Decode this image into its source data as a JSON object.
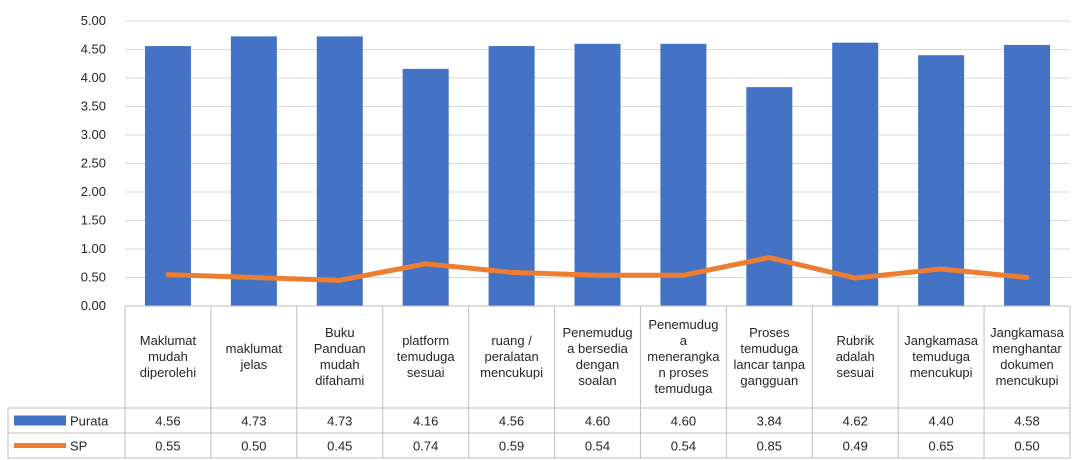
{
  "chart_data": {
    "type": "bar",
    "categories": [
      [
        "Maklumat",
        "mudah",
        "diperolehi"
      ],
      [
        "maklumat",
        "jelas"
      ],
      [
        "Buku",
        "Panduan",
        "mudah",
        "difahami"
      ],
      [
        "platform",
        "temuduga",
        "sesuai"
      ],
      [
        "ruang /",
        "peralatan",
        "mencukupi"
      ],
      [
        "Penemudug",
        "a bersedia",
        "dengan",
        "soalan"
      ],
      [
        "Penemudug",
        "a",
        "menerangka",
        "n proses",
        "temuduga"
      ],
      [
        "Proses",
        "temuduga",
        "lancar tanpa",
        "gangguan"
      ],
      [
        "Rubrik",
        "adalah",
        "sesuai"
      ],
      [
        "Jangkamasa",
        "temuduga",
        "mencukupi"
      ],
      [
        "Jangkamasa",
        "menghantar",
        "dokumen",
        "mencukupi"
      ]
    ],
    "series": [
      {
        "name": "Purata",
        "kind": "bar",
        "color": "#4472C4",
        "values": [
          4.56,
          4.73,
          4.73,
          4.16,
          4.56,
          4.6,
          4.6,
          3.84,
          4.62,
          4.4,
          4.58
        ],
        "labels": [
          "4.56",
          "4.73",
          "4.73",
          "4.16",
          "4.56",
          "4.60",
          "4.60",
          "3.84",
          "4.62",
          "4.40",
          "4.58"
        ]
      },
      {
        "name": "SP",
        "kind": "line",
        "color": "#ED7D31",
        "values": [
          0.55,
          0.5,
          0.45,
          0.74,
          0.59,
          0.54,
          0.54,
          0.85,
          0.49,
          0.65,
          0.5
        ],
        "labels": [
          "0.55",
          "0.50",
          "0.45",
          "0.74",
          "0.59",
          "0.54",
          "0.54",
          "0.85",
          "0.49",
          "0.65",
          "0.50"
        ]
      }
    ],
    "ylim": [
      0,
      5
    ],
    "yticks": [
      "0.00",
      "0.50",
      "1.00",
      "1.50",
      "2.00",
      "2.50",
      "3.00",
      "3.50",
      "4.00",
      "4.50",
      "5.00"
    ],
    "grid": true,
    "legend": "data-table",
    "title": "",
    "xlabel": "",
    "ylabel": ""
  }
}
